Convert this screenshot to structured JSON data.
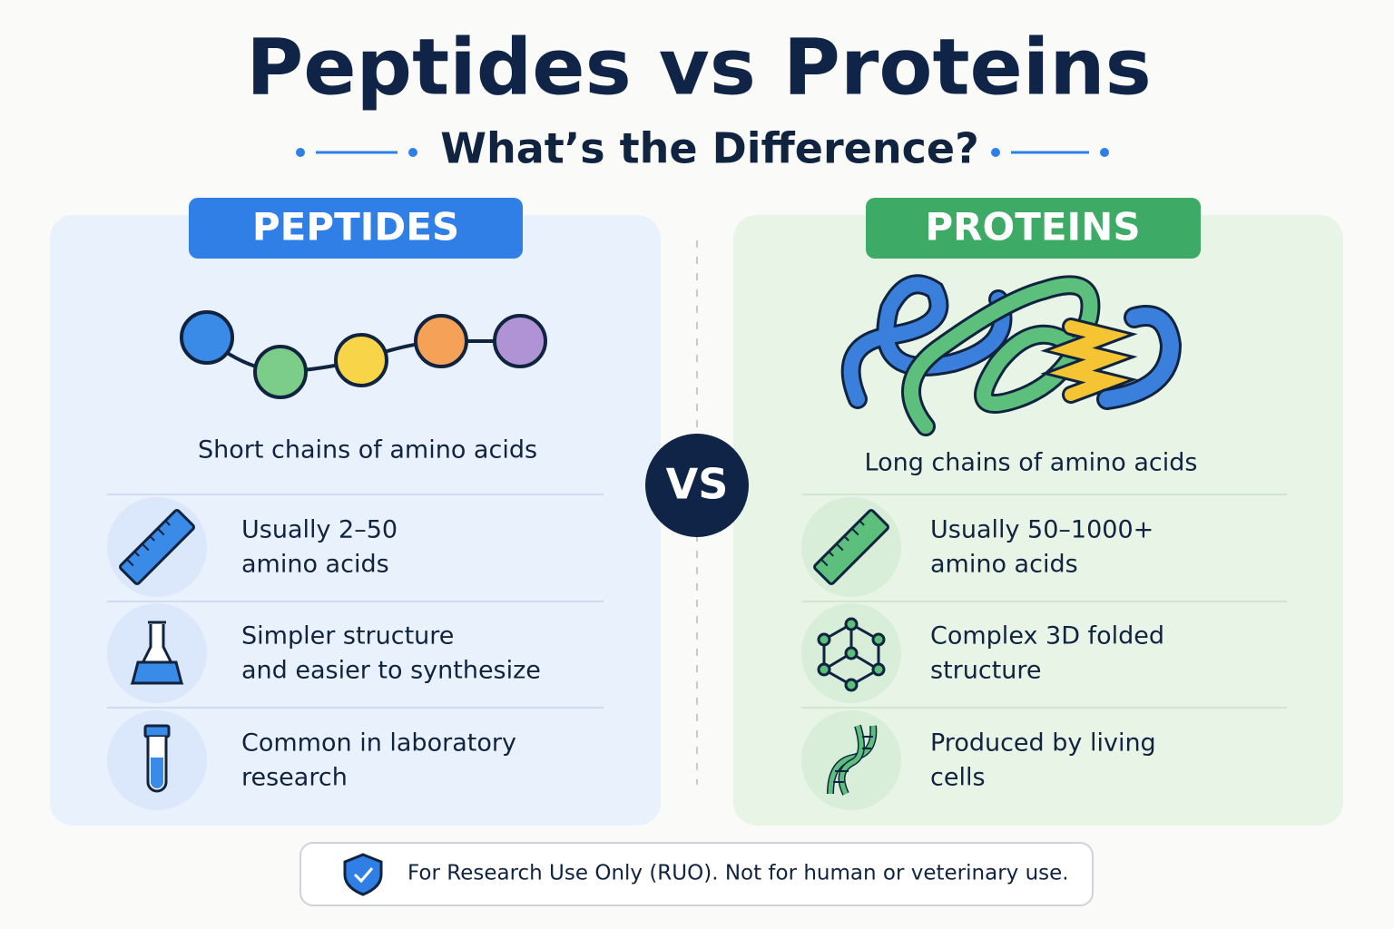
{
  "header": {
    "title": "Peptides vs Proteins",
    "subtitle": "What’s the Difference?"
  },
  "panels": [
    {
      "label": "PEPTIDES",
      "summary": "Short chains of amino acids",
      "items": [
        [
          "Usually 2–50",
          "amino acids"
        ],
        [
          "Simpler structure",
          "and easier to synthesize"
        ],
        [
          "Common in laboratory",
          "research"
        ]
      ]
    },
    {
      "label": "PROTEINS",
      "summary": "Long chains of amino acids",
      "items": [
        [
          "Usually 50–1000+",
          "amino acids"
        ],
        [
          "Complex 3D folded",
          "structure"
        ],
        [
          "Produced by living",
          "cells"
        ]
      ]
    }
  ],
  "vs": "VS",
  "footer": {
    "note": "For Research Use Only (RUO). Not for human or veterinary use."
  }
}
